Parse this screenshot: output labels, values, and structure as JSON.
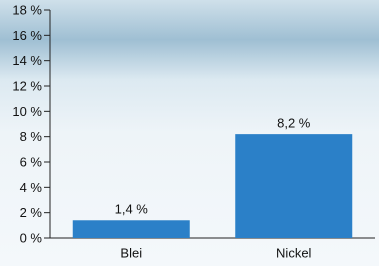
{
  "chart_data": {
    "type": "bar",
    "categories": [
      "Blei",
      "Nickel"
    ],
    "values": [
      1.4,
      8.2
    ],
    "value_labels": [
      "1,4 %",
      "8,2 %"
    ],
    "color": "#2b80c8",
    "ylim": [
      0,
      18
    ],
    "yticks": [
      {
        "value": 0,
        "label": "0 %"
      },
      {
        "value": 2,
        "label": "2 %"
      },
      {
        "value": 4,
        "label": "4 %"
      },
      {
        "value": 6,
        "label": "6 %"
      },
      {
        "value": 8,
        "label": "8 %"
      },
      {
        "value": 10,
        "label": "10 %"
      },
      {
        "value": 12,
        "label": "12 %"
      },
      {
        "value": 14,
        "label": "14 %"
      },
      {
        "value": 16,
        "label": "16 %"
      },
      {
        "value": 18,
        "label": "18 %"
      }
    ]
  }
}
